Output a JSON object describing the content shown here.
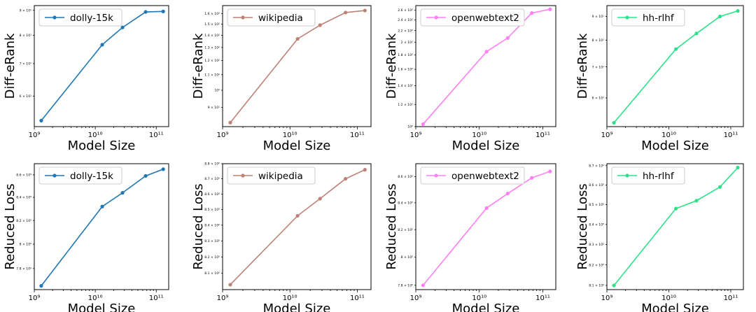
{
  "chart_data": [
    {
      "type": "line",
      "id": "diff-dolly",
      "series": [
        {
          "name": "dolly-15k",
          "color": "#1f77b4",
          "x": [
            1300000000.0,
            13000000000.0,
            28000000000.0,
            67000000000.0,
            130000000000.0
          ],
          "y": [
            53.5,
            76.5,
            83,
            89.3,
            89.5
          ]
        }
      ],
      "ylabel": "Diff-eRank",
      "xlabel": "Model Size",
      "xlim": [
        1000000000.0,
        160000000000.0
      ],
      "ylim": [
        52,
        92
      ],
      "yticks": [
        60,
        70,
        80,
        90
      ],
      "yticklabels": [
        "6 × 10¹",
        "7 × 10¹",
        "8 × 10¹",
        "9 × 10¹"
      ],
      "xticklabels": [
        "10⁹",
        "10¹⁰",
        "10¹¹"
      ],
      "legend": "upper-left"
    },
    {
      "type": "line",
      "id": "diff-wiki",
      "series": [
        {
          "name": "wikipedia",
          "color": "#bc8276",
          "x": [
            1300000000.0,
            13000000000.0,
            28000000000.0,
            67000000000.0,
            130000000000.0
          ],
          "y": [
            82,
            137,
            149,
            161,
            163
          ]
        }
      ],
      "ylabel": "Diff-eRank",
      "xlabel": "Model Size",
      "xlim": [
        1000000000.0,
        160000000000.0
      ],
      "ylim": [
        80,
        168
      ],
      "yticks": [
        90,
        100,
        110,
        120,
        130,
        140,
        150,
        160
      ],
      "yticklabels": [
        "9 × 10¹",
        "10²",
        "1.1 × 10²",
        "1.2 × 10²",
        "1.3 × 10²",
        "1.4 × 10²",
        "1.5 × 10²",
        "1.6 × 10²"
      ],
      "xticklabels": [
        "10⁹",
        "10¹⁰",
        "10¹¹"
      ],
      "legend": "upper-left"
    },
    {
      "type": "line",
      "id": "diff-owt",
      "series": [
        {
          "name": "openwebtext2",
          "color": "#ff7ff4",
          "x": [
            1300000000.0,
            13000000000.0,
            28000000000.0,
            67000000000.0,
            130000000000.0
          ],
          "y": [
            102,
            185,
            207,
            254,
            262
          ]
        }
      ],
      "ylabel": "Diff-eRank",
      "xlabel": "Model Size",
      "xlim": [
        1000000000.0,
        160000000000.0
      ],
      "ylim": [
        100,
        270
      ],
      "yticks": [
        100,
        120,
        140,
        160,
        180,
        200,
        220,
        240,
        260
      ],
      "yticklabels": [
        "10²",
        "1.2 × 10²",
        "1.4 × 10²",
        "1.6 × 10²",
        "1.8 × 10²",
        "2 × 10²",
        "2.2 × 10²",
        "2.4 × 10²",
        "2.6 × 10²"
      ],
      "xticklabels": [
        "10⁹",
        "10¹⁰",
        "10¹¹"
      ],
      "legend": "upper-left"
    },
    {
      "type": "line",
      "id": "diff-hh",
      "series": [
        {
          "name": "hh-rlhf",
          "color": "#2ee08a",
          "x": [
            1300000000.0,
            13000000000.0,
            28000000000.0,
            67000000000.0,
            130000000000.0
          ],
          "y": [
            53,
            76.5,
            82.7,
            90,
            92.5
          ]
        }
      ],
      "ylabel": "Diff-eRank",
      "xlabel": "Model Size",
      "xlim": [
        1000000000.0,
        160000000000.0
      ],
      "ylim": [
        52,
        95
      ],
      "yticks": [
        60,
        70,
        80,
        90
      ],
      "yticklabels": [
        "6 × 10¹",
        "7 × 10¹",
        "8 × 10¹",
        "9 × 10¹"
      ],
      "xticklabels": [
        "10⁹",
        "10¹⁰",
        "10¹¹"
      ],
      "legend": "upper-left"
    },
    {
      "type": "line",
      "id": "loss-dolly",
      "series": [
        {
          "name": "dolly-15k",
          "color": "#1f77b4",
          "x": [
            1300000000.0,
            13000000000.0,
            28000000000.0,
            67000000000.0,
            130000000000.0
          ],
          "y": [
            7.66,
            8.32,
            8.44,
            8.59,
            8.65
          ]
        }
      ],
      "ylabel": "Reduced Loss",
      "xlabel": "Model Size",
      "xlim": [
        1000000000.0,
        160000000000.0
      ],
      "ylim": [
        7.63,
        8.7
      ],
      "yticks": [
        7.8,
        8.0,
        8.2,
        8.4,
        8.6
      ],
      "yticklabels": [
        "7.8 × 10⁰",
        "8 × 10⁰",
        "8.2 × 10⁰",
        "8.4 × 10⁰",
        "8.6 × 10⁰"
      ],
      "xticklabels": [
        "10⁹",
        "10¹⁰",
        "10¹¹"
      ],
      "legend": "upper-left"
    },
    {
      "type": "line",
      "id": "loss-wiki",
      "series": [
        {
          "name": "wikipedia",
          "color": "#bc8276",
          "x": [
            1300000000.0,
            13000000000.0,
            28000000000.0,
            67000000000.0,
            130000000000.0
          ],
          "y": [
            8.03,
            8.46,
            8.57,
            8.7,
            8.76
          ]
        }
      ],
      "ylabel": "Reduced Loss",
      "xlabel": "Model Size",
      "xlim": [
        1000000000.0,
        160000000000.0
      ],
      "ylim": [
        8.0,
        8.8
      ],
      "yticks": [
        8.1,
        8.2,
        8.3,
        8.4,
        8.5,
        8.6,
        8.7,
        8.8
      ],
      "yticklabels": [
        "8.1 × 10⁰",
        "8.2 × 10⁰",
        "8.3 × 10⁰",
        "8.4 × 10⁰",
        "8.5 × 10⁰",
        "8.6 × 10⁰",
        "8.7 × 10⁰",
        "8.8 × 10⁰"
      ],
      "xticklabels": [
        "10⁹",
        "10¹⁰",
        "10¹¹"
      ],
      "legend": "upper-left"
    },
    {
      "type": "line",
      "id": "loss-owt",
      "series": [
        {
          "name": "openwebtext2",
          "color": "#ff7ff4",
          "x": [
            1300000000.0,
            13000000000.0,
            28000000000.0,
            67000000000.0,
            130000000000.0
          ],
          "y": [
            7.8,
            8.36,
            8.47,
            8.59,
            8.64
          ]
        }
      ],
      "ylabel": "Reduced Loss",
      "xlabel": "Model Size",
      "xlim": [
        1000000000.0,
        160000000000.0
      ],
      "ylim": [
        7.77,
        8.7
      ],
      "yticks": [
        7.8,
        8.0,
        8.2,
        8.4,
        8.6
      ],
      "yticklabels": [
        "7.8 × 10⁰",
        "8 × 10⁰",
        "8.2 × 10⁰",
        "8.4 × 10⁰",
        "8.6 × 10⁰"
      ],
      "xticklabels": [
        "10⁹",
        "10¹⁰",
        "10¹¹"
      ],
      "legend": "upper-left"
    },
    {
      "type": "line",
      "id": "loss-hh",
      "series": [
        {
          "name": "hh-rlhf",
          "color": "#2ee08a",
          "x": [
            1300000000.0,
            13000000000.0,
            28000000000.0,
            67000000000.0,
            130000000000.0
          ],
          "y": [
            8.1,
            8.48,
            8.52,
            8.59,
            8.69
          ]
        }
      ],
      "ylabel": "Reduced Loss",
      "xlabel": "Model Size",
      "xlim": [
        1000000000.0,
        160000000000.0
      ],
      "ylim": [
        8.08,
        8.71
      ],
      "yticks": [
        8.1,
        8.2,
        8.3,
        8.4,
        8.5,
        8.6,
        8.7
      ],
      "yticklabels": [
        "8.1 × 10⁰",
        "8.2 × 10⁰",
        "8.3 × 10⁰",
        "8.4 × 10⁰",
        "8.5 × 10⁰",
        "8.6 × 10⁰",
        "8.7 × 10⁰"
      ],
      "xticklabels": [
        "10⁹",
        "10¹⁰",
        "10¹¹"
      ],
      "legend": "upper-left"
    }
  ]
}
